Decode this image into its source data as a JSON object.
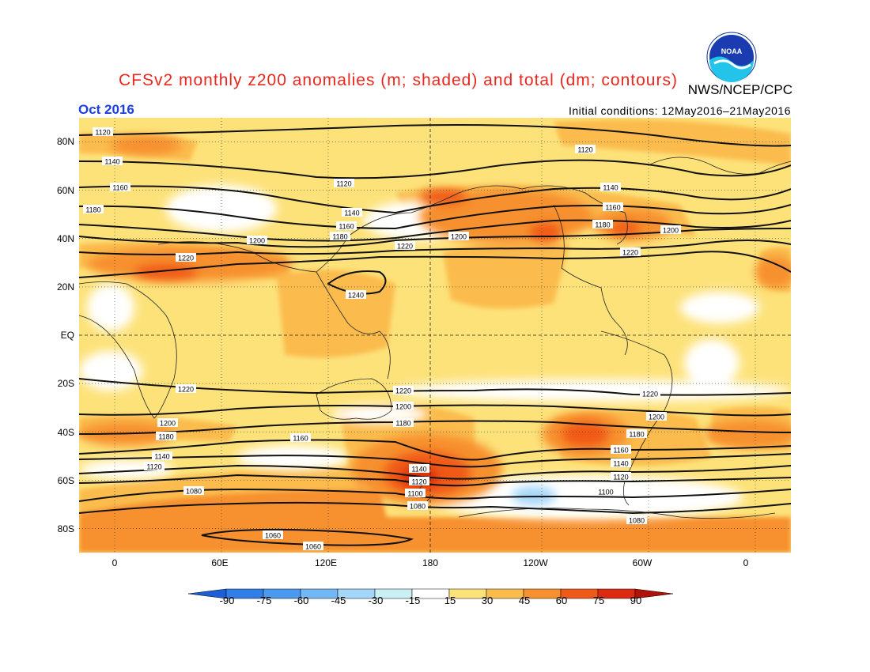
{
  "title": "CFSv2 monthly z200 anomalies (m; shaded) and total (dm; contours)",
  "agency": "NWS/NCEP/CPC",
  "logo_text": "NOAA",
  "month": "Oct 2016",
  "initial_conditions": "Initial conditions: 12May2016–21May2016",
  "lat_labels": [
    "80N",
    "60N",
    "40N",
    "20N",
    "EQ",
    "20S",
    "40S",
    "60S",
    "80S"
  ],
  "lon_labels": [
    "0",
    "60E",
    "120E",
    "180",
    "120W",
    "60W",
    "0"
  ],
  "colorbar": {
    "labels": [
      "-90",
      "-75",
      "-60",
      "-45",
      "-30",
      "-15",
      "15",
      "30",
      "45",
      "60",
      "75",
      "90"
    ],
    "colors": [
      "#1c5fd6",
      "#2f7fe6",
      "#4c99f0",
      "#74b7f5",
      "#a4d6f9",
      "#c8f0f5",
      "#ffffff",
      "#fde27a",
      "#fbbc4e",
      "#f7902e",
      "#f05a18",
      "#dc2a10",
      "#b01208"
    ],
    "low_color": "#1c5fd6",
    "high_color": "#b01208"
  },
  "contour_labels": [
    {
      "text": "1120"
    },
    {
      "text": "1140"
    },
    {
      "text": "1160"
    },
    {
      "text": "1180"
    },
    {
      "text": "1120"
    },
    {
      "text": "1140"
    },
    {
      "text": "1160"
    },
    {
      "text": "1180"
    },
    {
      "text": "1200"
    },
    {
      "text": "1220"
    },
    {
      "text": "1240"
    },
    {
      "text": "1120"
    },
    {
      "text": "1140"
    },
    {
      "text": "1160"
    },
    {
      "text": "1180"
    },
    {
      "text": "1200"
    },
    {
      "text": "1200"
    },
    {
      "text": "1220"
    },
    {
      "text": "1220"
    },
    {
      "text": "1220"
    },
    {
      "text": "1220"
    },
    {
      "text": "1200"
    },
    {
      "text": "1180"
    },
    {
      "text": "1160"
    },
    {
      "text": "1200"
    },
    {
      "text": "1180"
    },
    {
      "text": "1140"
    },
    {
      "text": "1120"
    },
    {
      "text": "1080"
    },
    {
      "text": "1060"
    },
    {
      "text": "1060"
    },
    {
      "text": "1220"
    },
    {
      "text": "1200"
    },
    {
      "text": "1180"
    },
    {
      "text": "1140"
    },
    {
      "text": "1120"
    },
    {
      "text": "1100"
    },
    {
      "text": "1080"
    },
    {
      "text": "1220"
    },
    {
      "text": "1200"
    },
    {
      "text": "1180"
    },
    {
      "text": "1160"
    },
    {
      "text": "1140"
    },
    {
      "text": "1120"
    },
    {
      "text": "1100"
    },
    {
      "text": "1080"
    }
  ]
}
